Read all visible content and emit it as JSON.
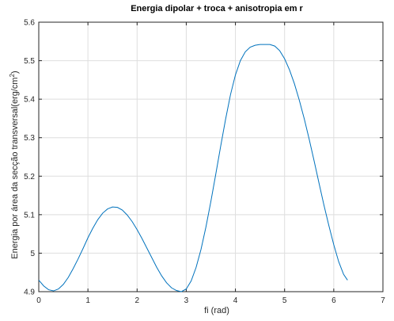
{
  "chart_data": {
    "type": "line",
    "title": "Energia dipolar + troca + anisotropia em r",
    "xlabel": "fi (rad)",
    "ylabel": "Energia por área da secção transversal(erg/cm",
    "ylabel_sup": "2",
    "ylabel_close": ")",
    "xlim": [
      0,
      7
    ],
    "ylim": [
      4.9,
      5.6
    ],
    "x_ticks": [
      0,
      1,
      2,
      3,
      4,
      5,
      6,
      7
    ],
    "y_ticks": [
      4.9,
      5.0,
      5.1,
      5.2,
      5.3,
      5.4,
      5.5,
      5.6
    ],
    "x_tick_labels": [
      "0",
      "1",
      "2",
      "3",
      "4",
      "5",
      "6",
      "7"
    ],
    "y_tick_labels": [
      "4.9",
      "5",
      "5.1",
      "5.2",
      "5.3",
      "5.4",
      "5.5",
      "5.6"
    ],
    "grid": true,
    "colors": {
      "line": "#0072bd",
      "grid": "#dedede",
      "axes": "#262626"
    },
    "series": [
      {
        "points": [
          [
            0.0,
            4.93
          ],
          [
            0.1,
            4.915
          ],
          [
            0.2,
            4.905
          ],
          [
            0.3,
            4.902
          ],
          [
            0.4,
            4.907
          ],
          [
            0.5,
            4.919
          ],
          [
            0.6,
            4.937
          ],
          [
            0.7,
            4.96
          ],
          [
            0.8,
            4.985
          ],
          [
            0.9,
            5.012
          ],
          [
            1.0,
            5.04
          ],
          [
            1.1,
            5.065
          ],
          [
            1.2,
            5.087
          ],
          [
            1.3,
            5.104
          ],
          [
            1.4,
            5.115
          ],
          [
            1.5,
            5.12
          ],
          [
            1.6,
            5.119
          ],
          [
            1.7,
            5.112
          ],
          [
            1.8,
            5.099
          ],
          [
            1.9,
            5.082
          ],
          [
            2.0,
            5.061
          ],
          [
            2.1,
            5.038
          ],
          [
            2.2,
            5.013
          ],
          [
            2.3,
            4.988
          ],
          [
            2.4,
            4.963
          ],
          [
            2.5,
            4.941
          ],
          [
            2.6,
            4.923
          ],
          [
            2.7,
            4.91
          ],
          [
            2.8,
            4.903
          ],
          [
            2.9,
            4.9
          ],
          [
            3.0,
            4.907
          ],
          [
            3.1,
            4.928
          ],
          [
            3.2,
            4.963
          ],
          [
            3.3,
            5.01
          ],
          [
            3.4,
            5.068
          ],
          [
            3.5,
            5.134
          ],
          [
            3.6,
            5.205
          ],
          [
            3.7,
            5.278
          ],
          [
            3.8,
            5.348
          ],
          [
            3.9,
            5.412
          ],
          [
            4.0,
            5.463
          ],
          [
            4.1,
            5.5
          ],
          [
            4.2,
            5.523
          ],
          [
            4.3,
            5.535
          ],
          [
            4.4,
            5.54
          ],
          [
            4.5,
            5.542
          ],
          [
            4.6,
            5.542
          ],
          [
            4.7,
            5.542
          ],
          [
            4.8,
            5.538
          ],
          [
            4.9,
            5.526
          ],
          [
            5.0,
            5.505
          ],
          [
            5.1,
            5.476
          ],
          [
            5.2,
            5.44
          ],
          [
            5.3,
            5.397
          ],
          [
            5.4,
            5.349
          ],
          [
            5.5,
            5.296
          ],
          [
            5.6,
            5.24
          ],
          [
            5.7,
            5.182
          ],
          [
            5.8,
            5.125
          ],
          [
            5.9,
            5.072
          ],
          [
            6.0,
            5.022
          ],
          [
            6.1,
            4.978
          ],
          [
            6.2,
            4.945
          ],
          [
            6.28,
            4.93
          ]
        ]
      }
    ]
  }
}
